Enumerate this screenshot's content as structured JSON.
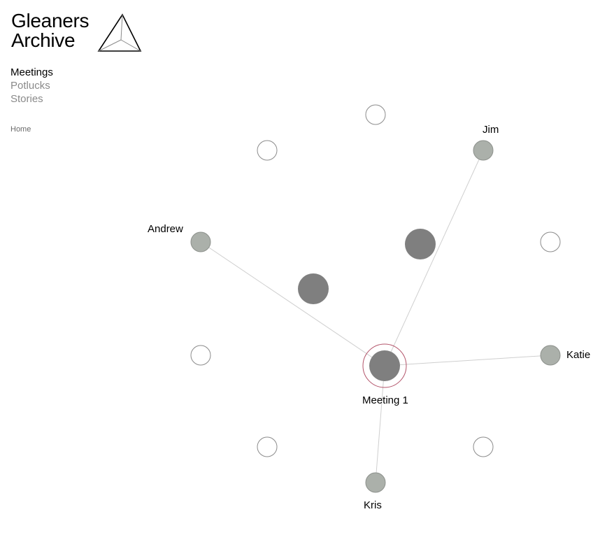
{
  "site": {
    "title_line1": "Gleaners",
    "title_line2": "Archive"
  },
  "nav": {
    "items": [
      {
        "label": "Meetings",
        "active": true
      },
      {
        "label": "Potlucks",
        "active": false
      },
      {
        "label": "Stories",
        "active": false
      }
    ]
  },
  "breadcrumb": {
    "home": "Home"
  },
  "graph": {
    "center_node": {
      "label": "Meeting 1"
    },
    "people": [
      {
        "label": "Jim"
      },
      {
        "label": "Andrew"
      },
      {
        "label": "Katie"
      },
      {
        "label": "Kris"
      }
    ]
  },
  "colors": {
    "person_node_fill": "#abb0aa",
    "meeting_node_fill": "#7f7f7f",
    "empty_node_stroke": "#8c8c8c",
    "selected_ring": "#b3546a",
    "link_stroke": "#cfcfcf",
    "nav_inactive": "#8a8a8a"
  }
}
